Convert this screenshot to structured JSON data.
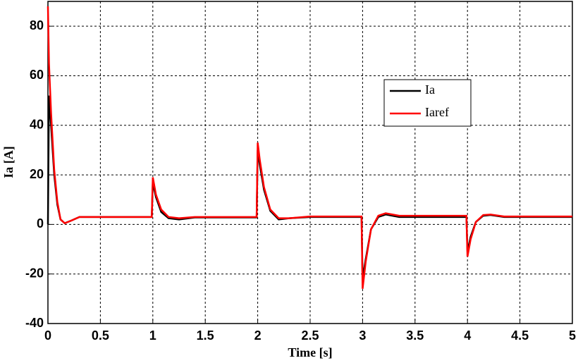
{
  "chart_data": {
    "type": "line",
    "xlabel": "Time [s]",
    "ylabel": "Ia [A]",
    "x": [
      0,
      0.01,
      0.03,
      0.06,
      0.09,
      0.12,
      0.16,
      0.22,
      0.3,
      0.99,
      1.0,
      1.03,
      1.08,
      1.15,
      1.25,
      1.4,
      1.99,
      2.0,
      2.02,
      2.06,
      2.12,
      2.2,
      2.3,
      2.5,
      2.99,
      3.0,
      3.03,
      3.08,
      3.15,
      3.22,
      3.35,
      3.99,
      4.0,
      4.03,
      4.08,
      4.15,
      4.22,
      4.35,
      5
    ],
    "series": [
      {
        "name": "Ia",
        "color": "#000000",
        "values": [
          0,
          52,
          40,
          20,
          8,
          2,
          0.5,
          1.5,
          3,
          3,
          17,
          11,
          5,
          2.5,
          2,
          2.8,
          2.8,
          30,
          24,
          14,
          5.5,
          2,
          2.5,
          3,
          3,
          -22,
          -14,
          -2,
          3,
          4,
          3,
          3,
          -11,
          -5,
          1,
          3.5,
          3.8,
          3,
          3
        ]
      },
      {
        "name": "Iaref",
        "color": "#ff0000",
        "values": [
          88,
          65,
          45,
          22,
          9,
          2,
          0.5,
          1.5,
          3,
          3,
          19,
          12,
          6,
          3,
          2.5,
          3,
          3,
          33,
          26,
          15,
          6,
          2.5,
          2.5,
          3.2,
          3.2,
          -26,
          -15,
          -2,
          3.5,
          4.5,
          3.5,
          3.5,
          -13,
          -6,
          1,
          3.8,
          4,
          3.2,
          3.2
        ]
      }
    ],
    "xlim": [
      0,
      5
    ],
    "xticks": [
      0,
      0.5,
      1,
      1.5,
      2,
      2.5,
      3,
      3.5,
      4,
      4.5,
      5
    ],
    "ylim": [
      -40,
      90
    ],
    "yticks": [
      -40,
      -20,
      0,
      20,
      40,
      60,
      80
    ],
    "grid": true,
    "legend": "right"
  }
}
